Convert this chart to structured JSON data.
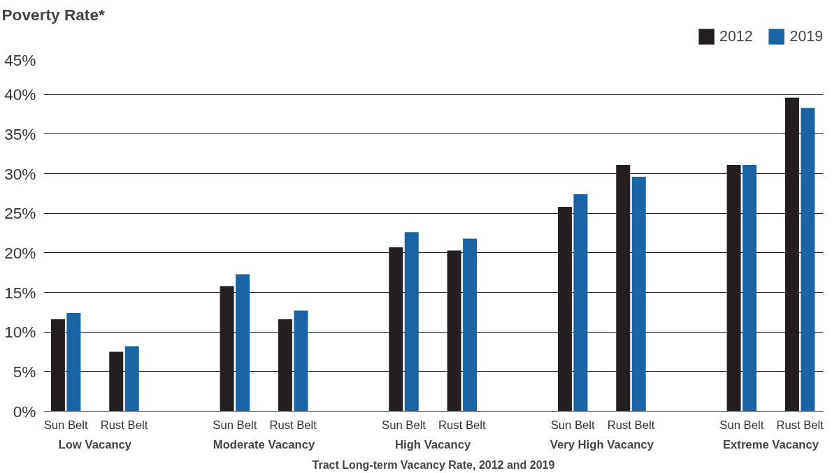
{
  "chart_data": {
    "type": "bar",
    "ylabel": "Poverty Rate*",
    "xlabel": "Tract Long-term Vacancy Rate, 2012 and 2019",
    "categories": [
      "Sun Belt",
      "Rust Belt",
      "Sun Belt",
      "Rust Belt",
      "Sun Belt",
      "Rust Belt",
      "Sun Belt",
      "Rust Belt",
      "Sun Belt",
      "Rust Belt"
    ],
    "annotations": [
      "Low Vacancy",
      "Moderate Vacancy",
      "High Vacancy",
      "Very High Vacancy",
      "Extreme Vacancy"
    ],
    "series": [
      {
        "name": "2012",
        "color": "#231f20",
        "values": [
          11.6,
          7.5,
          15.8,
          11.6,
          20.7,
          20.3,
          25.8,
          31.1,
          31.1,
          39.6
        ]
      },
      {
        "name": "2019",
        "color": "#1a64a6",
        "values": [
          12.4,
          8.2,
          17.3,
          12.7,
          22.6,
          21.8,
          27.4,
          29.6,
          31.1,
          38.3
        ]
      }
    ],
    "ylim": [
      0,
      45
    ],
    "yticks": [
      {
        "value": 0,
        "label": "0%"
      },
      {
        "value": 5,
        "label": "5%"
      },
      {
        "value": 10,
        "label": "10%"
      },
      {
        "value": 15,
        "label": "15%"
      },
      {
        "value": 20,
        "label": "20%"
      },
      {
        "value": 25,
        "label": "25%"
      },
      {
        "value": 30,
        "label": "30%"
      },
      {
        "value": 35,
        "label": "35%"
      },
      {
        "value": 40,
        "label": "40%"
      },
      {
        "value": 45,
        "label": "45%"
      }
    ],
    "grid": "y",
    "legend": "top right"
  }
}
